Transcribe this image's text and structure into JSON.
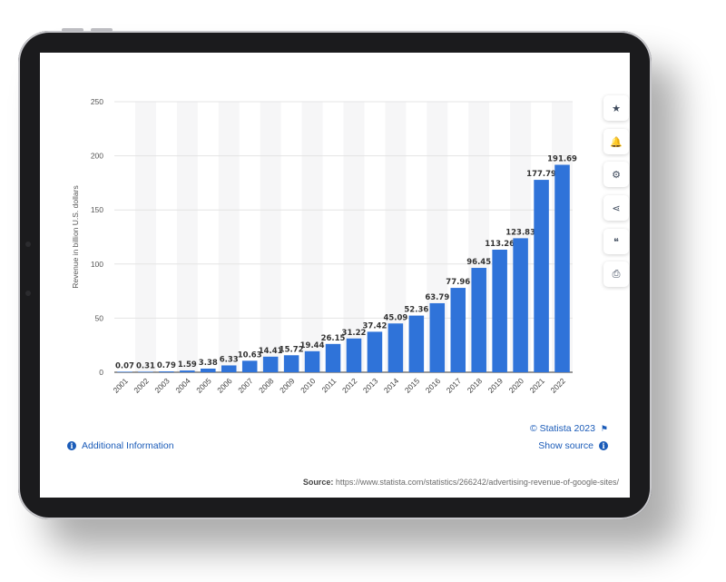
{
  "chart_data": {
    "type": "bar",
    "categories": [
      "2001",
      "2002",
      "2003",
      "2004",
      "2005",
      "2006",
      "2007",
      "2008",
      "2009",
      "2010",
      "2011",
      "2012",
      "2013",
      "2014",
      "2015",
      "2016",
      "2017",
      "2018",
      "2019",
      "2020",
      "2021",
      "2022"
    ],
    "values": [
      0.07,
      0.31,
      0.79,
      1.59,
      3.38,
      6.33,
      10.63,
      14.41,
      15.72,
      19.44,
      26.15,
      31.22,
      37.42,
      45.09,
      52.36,
      63.79,
      77.96,
      96.45,
      113.26,
      123.83,
      177.79,
      191.69
    ],
    "value_labels": [
      "0.07",
      "0.31",
      "0.79",
      "1.59",
      "3.38",
      "6.33",
      "10.63",
      "14.41",
      "15.72",
      "19.44",
      "26.15",
      "31.22",
      "37.42",
      "45.09",
      "52.36",
      "63.79",
      "77.96",
      "96.45",
      "113.26",
      "123.83",
      "177.79",
      "191.69"
    ],
    "ylabel": "Revenue in billion U.S. dollars",
    "xlabel": "",
    "ylim": [
      0,
      250
    ],
    "yticks": [
      0,
      50,
      100,
      150,
      200,
      250
    ],
    "grid": true,
    "bar_color": "#2f73d9"
  },
  "toolbar": {
    "buttons": [
      {
        "name": "favorite-button",
        "icon": "star-icon",
        "glyph": "★"
      },
      {
        "name": "alert-button",
        "icon": "bell-icon",
        "glyph": "🔔"
      },
      {
        "name": "settings-button",
        "icon": "gear-icon",
        "glyph": "⚙"
      },
      {
        "name": "share-button",
        "icon": "share-icon",
        "glyph": "⋖"
      },
      {
        "name": "cite-button",
        "icon": "quote-icon",
        "glyph": "❝"
      },
      {
        "name": "print-button",
        "icon": "print-icon",
        "glyph": "⎙"
      }
    ]
  },
  "footer": {
    "copyright": "© Statista 2023",
    "show_source": "Show source",
    "additional_info": "Additional Information",
    "source_label": "Source:",
    "source_url": "https://www.statista.com/statistics/266242/advertising-revenue-of-google-sites/"
  },
  "colors": {
    "accent": "#1a5bb8",
    "bar": "#2f73d9"
  }
}
